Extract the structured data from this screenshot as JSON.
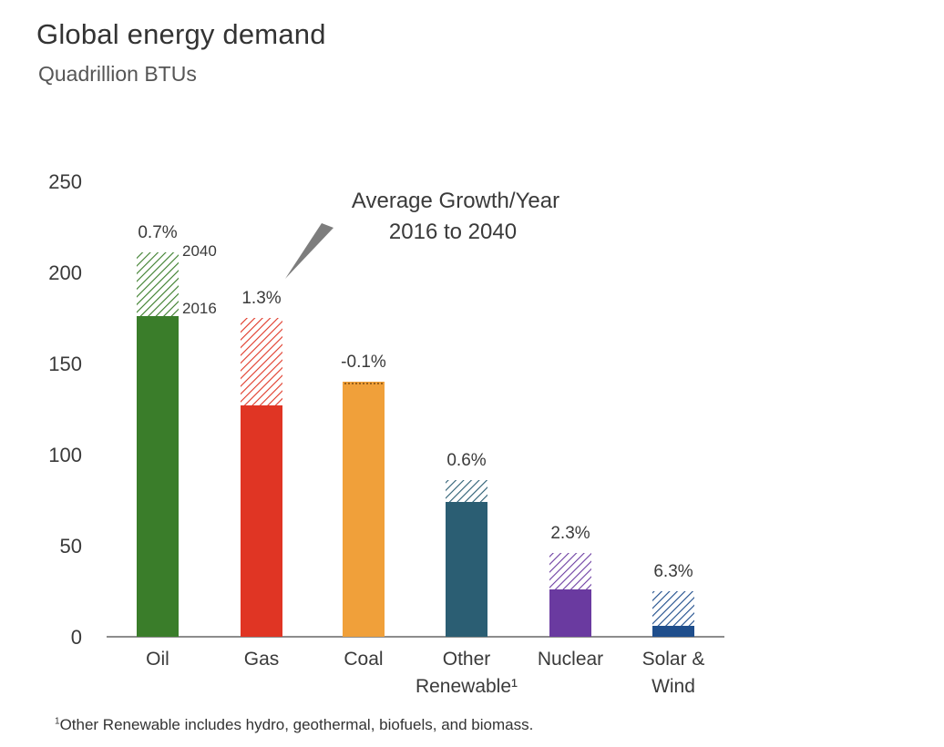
{
  "chart_data": {
    "type": "bar",
    "title": "Global energy demand",
    "subtitle": "Quadrillion BTUs",
    "categories": [
      [
        "Oil"
      ],
      [
        "Gas"
      ],
      [
        "Coal"
      ],
      [
        "Other",
        "Renewable¹"
      ],
      [
        "Nuclear"
      ],
      [
        "Solar &",
        "Wind"
      ]
    ],
    "series": [
      {
        "name": "2016",
        "values": [
          176,
          127,
          140,
          74,
          26,
          6
        ]
      },
      {
        "name": "2040",
        "values": [
          211,
          175,
          139,
          86,
          46,
          25
        ]
      }
    ],
    "growth_labels": [
      "0.7%",
      "1.3%",
      "-0.1%",
      "0.6%",
      "2.3%",
      "6.3%"
    ],
    "colors": [
      "#3a7d2a",
      "#e03524",
      "#f0a03a",
      "#2b5e73",
      "#6a3aa0",
      "#1f4e8c"
    ],
    "ylim": [
      0,
      250
    ],
    "yticks": [
      0,
      50,
      100,
      150,
      200,
      250
    ],
    "annotations": {
      "callout": [
        "Average Growth/Year",
        "2016 to 2040"
      ],
      "year_label_2040": "2040",
      "year_label_2016": "2016"
    },
    "grid": false
  },
  "footnote": {
    "mark": "1",
    "text": "Other Renewable includes hydro, geothermal, biofuels, and biomass."
  }
}
